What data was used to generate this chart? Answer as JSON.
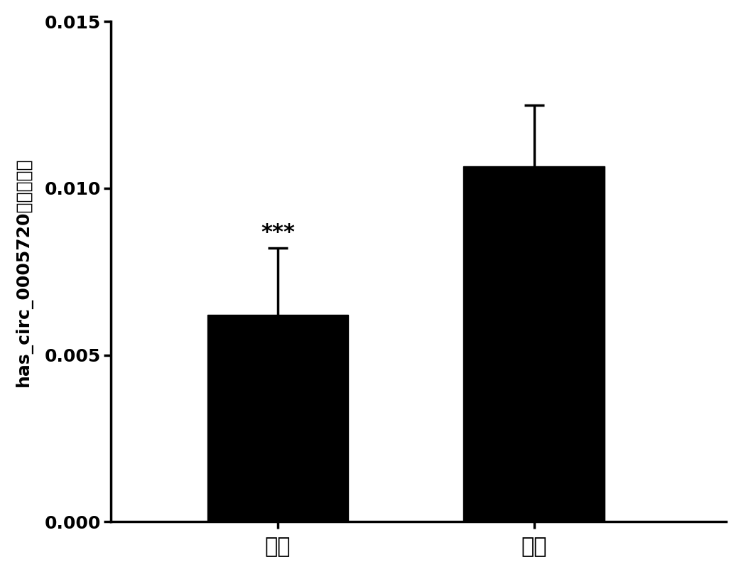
{
  "categories": [
    "病例",
    "对照"
  ],
  "values": [
    0.0062,
    0.01065
  ],
  "errors_upper": [
    0.002,
    0.00185
  ],
  "errors_lower": [
    0.002,
    0.00185
  ],
  "bar_color": "#000000",
  "background_color": "#ffffff",
  "ylabel": "has_circ_0005720的表达水平",
  "ylim": [
    0.0,
    0.015
  ],
  "yticks": [
    0.0,
    0.005,
    0.01,
    0.015
  ],
  "ytick_labels": [
    "0.000",
    "0.005",
    "0.010",
    "0.015"
  ],
  "significance_label": "***",
  "bar_width": 0.55,
  "error_capsize": 10,
  "tick_fontsize": 18,
  "ylabel_fontsize": 18,
  "xlabel_fontsize": 22
}
